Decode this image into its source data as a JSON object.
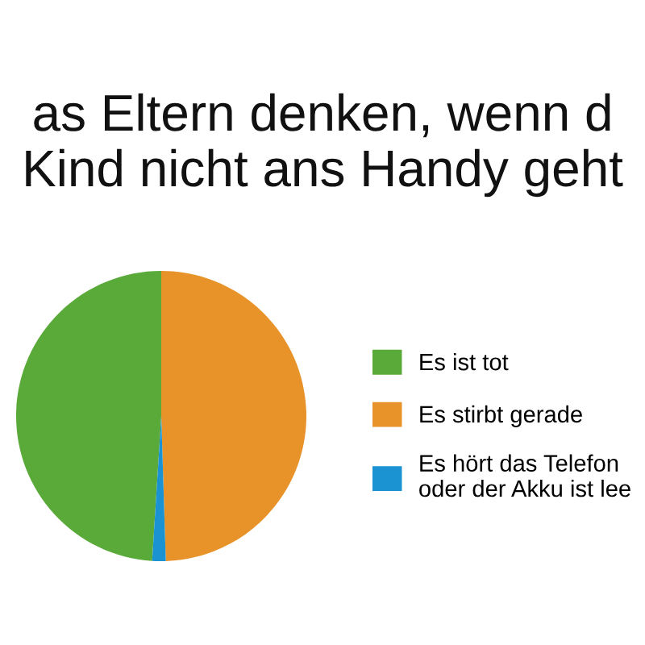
{
  "chart_data": {
    "type": "pie",
    "title": "as Eltern denken, wenn d\nKind nicht ans Handy geht",
    "categories": [
      "Es ist tot",
      "Es stirbt gerade",
      "Es hört das Telefon\noder der Akku ist lee"
    ],
    "values": [
      49,
      49.5,
      1.5
    ],
    "colors": [
      "#5aaa3a",
      "#e8922a",
      "#1b93d2"
    ],
    "legend": "right"
  }
}
